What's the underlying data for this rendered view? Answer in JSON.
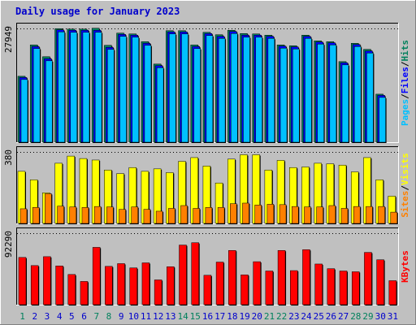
{
  "title": "Daily usage for January 2023",
  "colors": {
    "hits": "#00805c",
    "files": "#0000ff",
    "pages": "#00c0ff",
    "visits": "#ffff00",
    "sites": "#ff8000",
    "kbytes": "#ff0000",
    "background": "#c0c0c0",
    "weekend_tick": "#00805c",
    "weekday_tick": "#0000cc"
  },
  "side_labels": {
    "pages": "Pages",
    "files": "Files",
    "hits": "Hits",
    "sites": "Sites",
    "visits": "Visits",
    "kbytes": "KBytes",
    "sep": "/"
  },
  "chart_data": [
    {
      "type": "bar",
      "panel": "top",
      "ymax_label": "27949",
      "ylim": [
        0,
        27949
      ],
      "categories": [
        "1",
        "2",
        "3",
        "4",
        "5",
        "6",
        "7",
        "8",
        "9",
        "10",
        "11",
        "12",
        "13",
        "14",
        "15",
        "16",
        "17",
        "18",
        "19",
        "20",
        "21",
        "22",
        "23",
        "24",
        "25",
        "26",
        "27",
        "28",
        "29",
        "30",
        "31"
      ],
      "weekend_days": [
        1,
        7,
        8,
        14,
        15,
        21,
        22,
        28,
        29
      ],
      "series": [
        {
          "name": "Hits",
          "values": [
            16200,
            23900,
            21000,
            27900,
            27800,
            27800,
            28000,
            23800,
            26800,
            26600,
            24700,
            19200,
            27400,
            27400,
            23900,
            27000,
            26400,
            27500,
            26700,
            26600,
            26300,
            23900,
            23700,
            26300,
            24900,
            24700,
            19800,
            24300,
            22800,
            11800,
            0
          ]
        },
        {
          "name": "Files",
          "values": [
            15900,
            23500,
            20500,
            27600,
            27500,
            27500,
            27500,
            23300,
            26500,
            26300,
            24300,
            18800,
            27100,
            27100,
            23500,
            26700,
            26000,
            27200,
            26300,
            26300,
            26000,
            23600,
            23400,
            26000,
            24600,
            24400,
            19500,
            24000,
            22400,
            11500,
            0
          ]
        },
        {
          "name": "Pages",
          "values": [
            15400,
            23000,
            20000,
            27100,
            27000,
            27000,
            27000,
            22800,
            26000,
            25800,
            23800,
            18300,
            26600,
            26600,
            23000,
            26200,
            25500,
            26700,
            25800,
            25800,
            25500,
            23100,
            22900,
            25500,
            24100,
            23900,
            19000,
            23500,
            21900,
            11000,
            0
          ]
        }
      ]
    },
    {
      "type": "bar",
      "panel": "middle",
      "ymax_label": "380",
      "ylim": [
        0,
        380
      ],
      "categories": [
        "1",
        "2",
        "3",
        "4",
        "5",
        "6",
        "7",
        "8",
        "9",
        "10",
        "11",
        "12",
        "13",
        "14",
        "15",
        "16",
        "17",
        "18",
        "19",
        "20",
        "21",
        "22",
        "23",
        "24",
        "25",
        "26",
        "27",
        "28",
        "29",
        "30",
        "31"
      ],
      "series": [
        {
          "name": "Visits",
          "values": [
            277,
            232,
            163,
            320,
            358,
            345,
            337,
            284,
            265,
            297,
            277,
            290,
            270,
            330,
            350,
            305,
            215,
            342,
            365,
            365,
            284,
            335,
            297,
            300,
            320,
            317,
            310,
            274,
            350,
            232,
            145
          ]
        },
        {
          "name": "Sites",
          "values": [
            78,
            85,
            158,
            92,
            88,
            85,
            90,
            88,
            75,
            88,
            75,
            65,
            80,
            95,
            80,
            85,
            85,
            105,
            108,
            98,
            102,
            100,
            90,
            88,
            88,
            95,
            80,
            90,
            90,
            90,
            60
          ]
        }
      ]
    },
    {
      "type": "bar",
      "panel": "bottom",
      "ymax_label": "92290",
      "ylim": [
        0,
        92290
      ],
      "categories": [
        "1",
        "2",
        "3",
        "4",
        "5",
        "6",
        "7",
        "8",
        "9",
        "10",
        "11",
        "12",
        "13",
        "14",
        "15",
        "16",
        "17",
        "18",
        "19",
        "20",
        "21",
        "22",
        "23",
        "24",
        "25",
        "26",
        "27",
        "28",
        "29",
        "30",
        "31"
      ],
      "series": [
        {
          "name": "KBytes",
          "values": [
            61000,
            50500,
            62000,
            50000,
            39000,
            30000,
            74000,
            49500,
            53000,
            47500,
            54000,
            32000,
            49000,
            77000,
            80000,
            38000,
            55000,
            70000,
            38500,
            55500,
            43500,
            70000,
            44000,
            71000,
            52500,
            46500,
            43500,
            42500,
            67500,
            58000,
            31000
          ]
        }
      ]
    }
  ]
}
